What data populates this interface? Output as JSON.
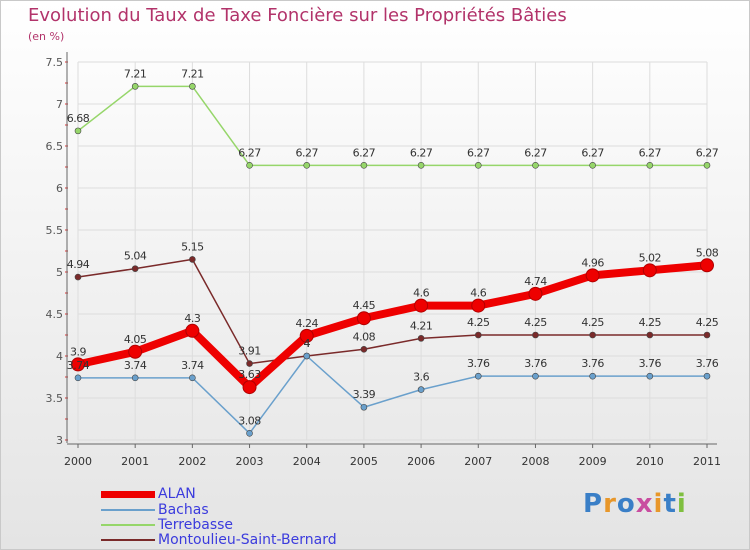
{
  "header": {
    "title": "Evolution du Taux de Taxe Foncière sur les Propriétés Bâties",
    "unit": "(en %)"
  },
  "logo": {
    "text": "Proxiti",
    "colors": [
      "#3a7fc7",
      "#e8972a",
      "#3a7fc7",
      "#c94da0",
      "#e8972a",
      "#3a7fc7",
      "#7fbf3f"
    ]
  },
  "chart_data": {
    "type": "line",
    "title": "Evolution du Taux de Taxe Foncière sur les Propriétés Bâties",
    "ylabel": "(en %)",
    "xlabel": "",
    "x": [
      "2000",
      "2001",
      "2002",
      "2003",
      "2004",
      "2005",
      "2006",
      "2007",
      "2008",
      "2009",
      "2010",
      "2011"
    ],
    "ylim": [
      3,
      7.5
    ],
    "yticks": [
      "3",
      "3.5",
      "4",
      "4.5",
      "5",
      "5.5",
      "6",
      "6.5",
      "7",
      "7.5"
    ],
    "legend_position": "bottom-left",
    "grid": true,
    "series": [
      {
        "name": "ALAN",
        "color": "#ee0000",
        "emphasis": true,
        "values": [
          3.9,
          4.05,
          4.3,
          3.63,
          4.24,
          4.45,
          4.6,
          4.6,
          4.74,
          4.96,
          5.02,
          5.08
        ],
        "labels": [
          "3.9",
          "4.05",
          "4.3",
          "3.63",
          "4.24",
          "4.45",
          "4.6",
          "4.6",
          "4.74",
          "4.96",
          "5.02",
          "5.08"
        ]
      },
      {
        "name": "Bachas",
        "color": "#6aa0cc",
        "values": [
          3.74,
          3.74,
          3.74,
          3.08,
          4.0,
          3.39,
          3.6,
          3.76,
          3.76,
          3.76,
          3.76,
          3.76
        ],
        "labels": [
          "3.74",
          "3.74",
          "3.74",
          "3.08",
          "4",
          "3.39",
          "3.6",
          "3.76",
          "3.76",
          "3.76",
          "3.76",
          "3.76"
        ]
      },
      {
        "name": "Terrebasse",
        "color": "#96d66a",
        "values": [
          6.68,
          7.21,
          7.21,
          6.27,
          6.27,
          6.27,
          6.27,
          6.27,
          6.27,
          6.27,
          6.27,
          6.27
        ],
        "labels": [
          "6.68",
          "7.21",
          "7.21",
          "6.27",
          "6.27",
          "6.27",
          "6.27",
          "6.27",
          "6.27",
          "6.27",
          "6.27",
          "6.27"
        ]
      },
      {
        "name": "Montoulieu-Saint-Bernard",
        "color": "#7a2a2a",
        "values": [
          4.94,
          5.04,
          5.15,
          3.91,
          4.0,
          4.08,
          4.21,
          4.25,
          4.25,
          4.25,
          4.25,
          4.25
        ],
        "labels": [
          "4.94",
          "5.04",
          "5.15",
          "3.91",
          "4",
          "4.08",
          "4.21",
          "4.25",
          "4.25",
          "4.25",
          "4.25",
          "4.25"
        ]
      }
    ]
  }
}
